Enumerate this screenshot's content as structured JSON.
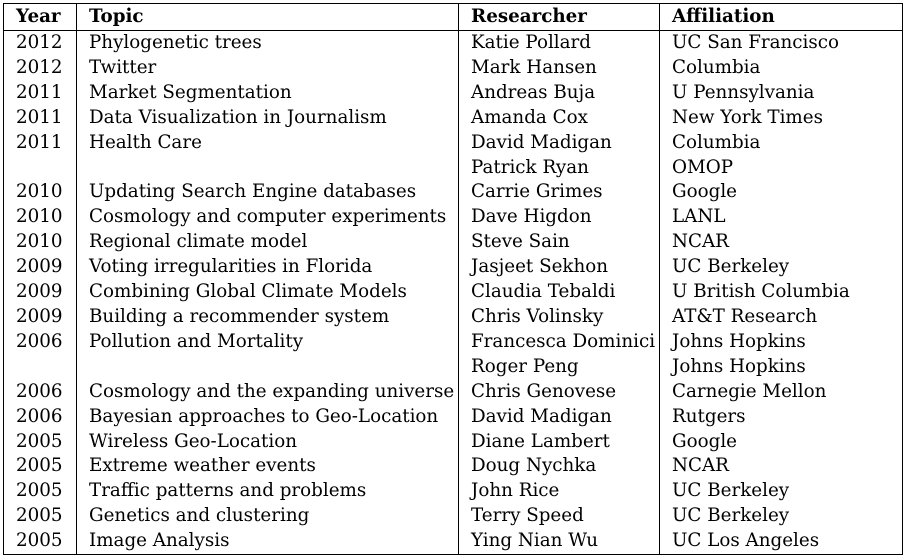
{
  "table": {
    "headers": {
      "year": "Year",
      "topic": "Topic",
      "researcher": "Researcher",
      "affiliation": "Affiliation"
    },
    "rows": [
      {
        "year": "2012",
        "topic": "Phylogenetic trees",
        "researcher": "Katie Pollard",
        "affiliation": "UC San Francisco"
      },
      {
        "year": "2012",
        "topic": "Twitter",
        "researcher": "Mark Hansen",
        "affiliation": "Columbia"
      },
      {
        "year": "2011",
        "topic": "Market Segmentation",
        "researcher": "Andreas Buja",
        "affiliation": "U Pennsylvania"
      },
      {
        "year": "2011",
        "topic": "Data Visualization in Journalism",
        "researcher": "Amanda Cox",
        "affiliation": "New York Times"
      },
      {
        "year": "2011",
        "topic": "Health Care",
        "researcher": "David Madigan",
        "affiliation": "Columbia"
      },
      {
        "year": "",
        "topic": "",
        "researcher": "Patrick Ryan",
        "affiliation": "OMOP"
      },
      {
        "year": "2010",
        "topic": "Updating Search Engine databases",
        "researcher": "Carrie Grimes",
        "affiliation": "Google"
      },
      {
        "year": "2010",
        "topic": "Cosmology and computer experiments",
        "researcher": "Dave Higdon",
        "affiliation": "LANL"
      },
      {
        "year": "2010",
        "topic": "Regional climate model",
        "researcher": "Steve Sain",
        "affiliation": "NCAR"
      },
      {
        "year": "2009",
        "topic": "Voting irregularities in Florida",
        "researcher": "Jasjeet Sekhon",
        "affiliation": "UC Berkeley"
      },
      {
        "year": "2009",
        "topic": "Combining Global Climate Models",
        "researcher": "Claudia Tebaldi",
        "affiliation": "U British Columbia"
      },
      {
        "year": "2009",
        "topic": "Building a recommender system",
        "researcher": "Chris Volinsky",
        "affiliation": "AT&T Research"
      },
      {
        "year": "2006",
        "topic": "Pollution and Mortality",
        "researcher": "Francesca Dominici",
        "affiliation": "Johns Hopkins"
      },
      {
        "year": "",
        "topic": "",
        "researcher": "Roger Peng",
        "affiliation": "Johns Hopkins"
      },
      {
        "year": "2006",
        "topic": "Cosmology and the expanding universe",
        "researcher": "Chris Genovese",
        "affiliation": "Carnegie Mellon"
      },
      {
        "year": "2006",
        "topic": "Bayesian approaches to Geo-Location",
        "researcher": "David Madigan",
        "affiliation": "Rutgers"
      },
      {
        "year": "2005",
        "topic": "Wireless Geo-Location",
        "researcher": "Diane Lambert",
        "affiliation": "Google"
      },
      {
        "year": "2005",
        "topic": "Extreme weather events",
        "researcher": "Doug Nychka",
        "affiliation": "NCAR"
      },
      {
        "year": "2005",
        "topic": "Traffic patterns and problems",
        "researcher": "John Rice",
        "affiliation": "UC Berkeley"
      },
      {
        "year": "2005",
        "topic": "Genetics and clustering",
        "researcher": "Terry Speed",
        "affiliation": "UC Berkeley"
      },
      {
        "year": "2005",
        "topic": "Image Analysis",
        "researcher": "Ying Nian Wu",
        "affiliation": "UC Los Angeles"
      }
    ]
  }
}
